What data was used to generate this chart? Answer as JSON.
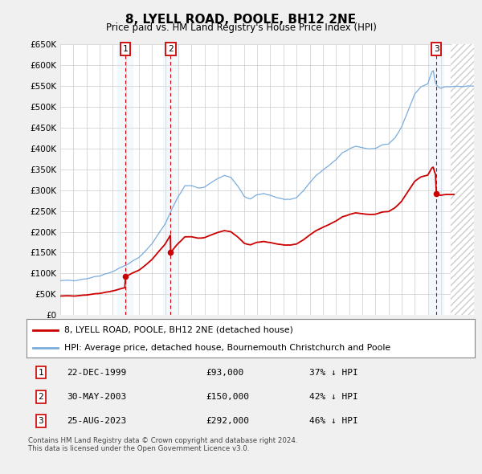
{
  "title": "8, LYELL ROAD, POOLE, BH12 2NE",
  "subtitle": "Price paid vs. HM Land Registry's House Price Index (HPI)",
  "ylim": [
    0,
    650000
  ],
  "yticks": [
    0,
    50000,
    100000,
    150000,
    200000,
    250000,
    300000,
    350000,
    400000,
    450000,
    500000,
    550000,
    600000,
    650000
  ],
  "ytick_labels": [
    "£0",
    "£50K",
    "£100K",
    "£150K",
    "£200K",
    "£250K",
    "£300K",
    "£350K",
    "£400K",
    "£450K",
    "£500K",
    "£550K",
    "£600K",
    "£650K"
  ],
  "xlim_start": 1995.0,
  "xlim_end": 2026.5,
  "transactions": [
    {
      "num": 1,
      "date": "22-DEC-1999",
      "price": 93000,
      "year": 1999.97,
      "hpi_pct": "37% ↓ HPI"
    },
    {
      "num": 2,
      "date": "30-MAY-2003",
      "price": 150000,
      "year": 2003.41,
      "hpi_pct": "42% ↓ HPI"
    },
    {
      "num": 3,
      "date": "25-AUG-2023",
      "price": 292000,
      "year": 2023.65,
      "hpi_pct": "46% ↓ HPI"
    }
  ],
  "legend_line1": "8, LYELL ROAD, POOLE, BH12 2NE (detached house)",
  "legend_line2": "HPI: Average price, detached house, Bournemouth Christchurch and Poole",
  "footnote": "Contains HM Land Registry data © Crown copyright and database right 2024.\nThis data is licensed under the Open Government Licence v3.0.",
  "hpi_color": "#7aacdc",
  "price_color": "#cc0000",
  "shade_color": "#d8e8f8",
  "background_color": "#f0f0f0",
  "plot_bg_color": "#ffffff",
  "grid_color": "#cccccc",
  "hatch_end_year": 2024.75
}
